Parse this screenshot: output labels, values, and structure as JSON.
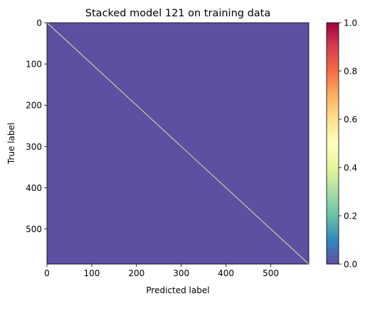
{
  "chart_data": {
    "type": "heatmap",
    "title": "Stacked model 121 on training data",
    "xlabel": "Predicted label",
    "ylabel": "True label",
    "matrix_size": 585,
    "xlim": [
      0,
      585
    ],
    "ylim": [
      585,
      0
    ],
    "x_ticks": [
      0,
      100,
      200,
      300,
      400,
      500
    ],
    "y_ticks": [
      0,
      100,
      200,
      300,
      400,
      500
    ],
    "cells": {
      "off_diagonal_value": 0.0,
      "diagonal_value": 0.6
    },
    "colormap": "Spectral_r",
    "colorbar": {
      "range": [
        0.0,
        1.0
      ],
      "ticks": [
        "0.0",
        "0.2",
        "0.4",
        "0.6",
        "0.8",
        "1.0"
      ],
      "colors": [
        "#5e4fa2",
        "#3288bd",
        "#66c2a5",
        "#abdda4",
        "#e6f598",
        "#ffffbf",
        "#fee08b",
        "#fdae61",
        "#f46d43",
        "#d53e4f",
        "#9e0142"
      ]
    },
    "colors": {
      "background_cell": "#5e4fa2",
      "diagonal_cell": "#dff5a0"
    },
    "grid": false
  }
}
